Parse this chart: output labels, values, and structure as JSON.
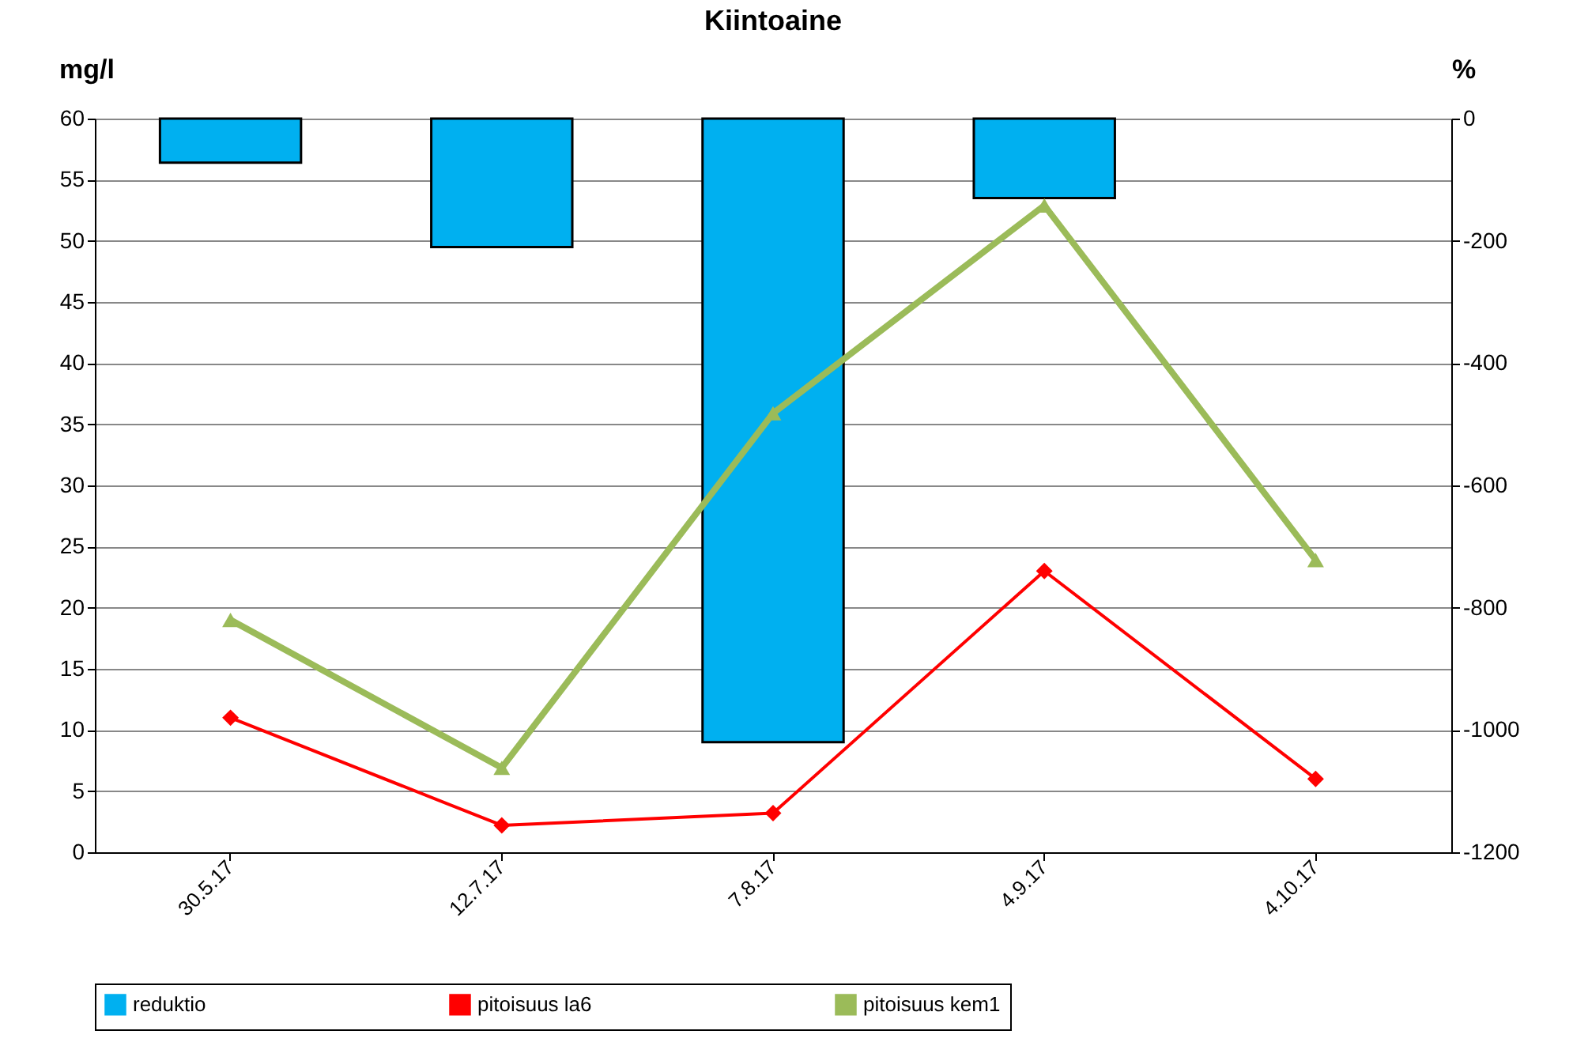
{
  "chart_data": {
    "type": "bar",
    "title": "Kiintoaine",
    "ylabel": "mg/l",
    "y2label": "%",
    "categories": [
      "30.5.17",
      "12.7.17",
      "7.8.17",
      "4.9.17",
      "4.10.17"
    ],
    "series": [
      {
        "name": "reduktio",
        "axis": "y2",
        "color": "#00b0f0",
        "values": [
          -72,
          -210,
          -1020,
          -130,
          null
        ]
      },
      {
        "name": "pitoisuus la6",
        "type": "line",
        "color": "#ff0000",
        "marker": "diamond",
        "values": [
          11,
          2.2,
          3.2,
          23,
          6
        ]
      },
      {
        "name": "pitoisuus kem1",
        "type": "line",
        "color": "#9bbb59",
        "marker": "triangle",
        "values": [
          19,
          6.9,
          35.9,
          52.9,
          23.9
        ]
      }
    ],
    "ylim": [
      0,
      60
    ],
    "yticks": [
      0,
      5,
      10,
      15,
      20,
      25,
      30,
      35,
      40,
      45,
      50,
      55,
      60
    ],
    "y2lim": [
      -1200,
      0
    ],
    "y2ticks": [
      -1200,
      -1000,
      -800,
      -600,
      -400,
      -200,
      0
    ],
    "grid": "y",
    "legend": "bottom"
  }
}
